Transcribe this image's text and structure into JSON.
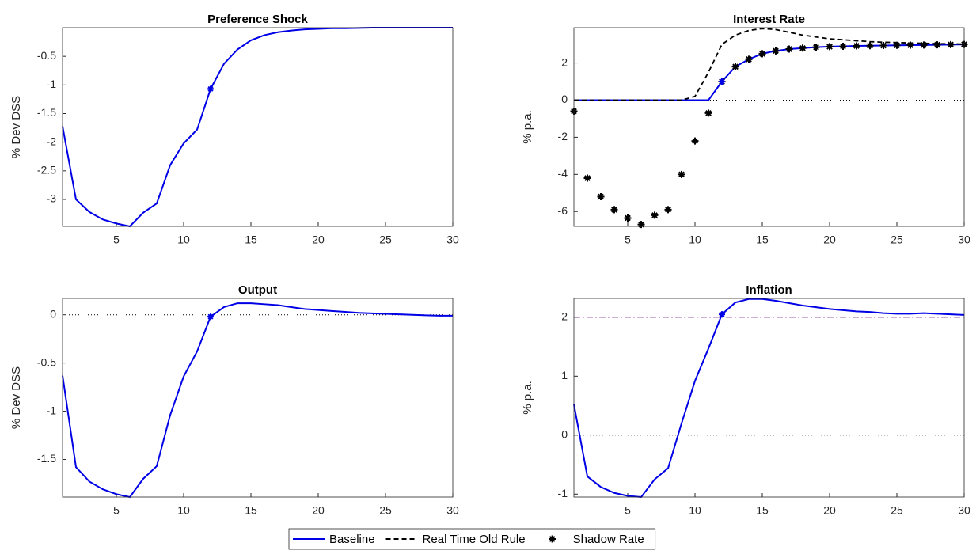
{
  "chart_data": [
    {
      "type": "line",
      "title": "Preference Shock",
      "ylabel": "% Dev DSS",
      "x": [
        1,
        2,
        3,
        4,
        5,
        6,
        7,
        8,
        9,
        10,
        11,
        12,
        13,
        14,
        15,
        16,
        17,
        18,
        19,
        20,
        21,
        22,
        23,
        24,
        25,
        26,
        27,
        28,
        29,
        30
      ],
      "series": [
        {
          "color": "#0000e6",
          "style": "solid",
          "values": [
            -1.72,
            -3.0,
            -3.22,
            -3.35,
            -3.42,
            -3.47,
            -3.23,
            -3.07,
            -2.4,
            -2.02,
            -1.78,
            -1.07,
            -0.63,
            -0.38,
            -0.22,
            -0.13,
            -0.08,
            -0.05,
            -0.03,
            -0.02,
            -0.01,
            -0.01,
            -0.005,
            0,
            0,
            0,
            0,
            0,
            0,
            0
          ]
        }
      ],
      "marker_x": 12,
      "xlim": [
        1,
        30
      ],
      "xticks": [
        5,
        10,
        15,
        20,
        25,
        30
      ],
      "ylim": [
        -3.47,
        0
      ],
      "yticks": [
        -3,
        -2.5,
        -2,
        -1.5,
        -1,
        -0.5
      ],
      "hlines": []
    },
    {
      "type": "line",
      "title": "Interest Rate",
      "ylabel": "% p.a.",
      "x": [
        1,
        2,
        3,
        4,
        5,
        6,
        7,
        8,
        9,
        10,
        11,
        12,
        13,
        14,
        15,
        16,
        17,
        18,
        19,
        20,
        21,
        22,
        23,
        24,
        25,
        26,
        27,
        28,
        29,
        30
      ],
      "series": [
        {
          "name": "Baseline",
          "color": "#0000e6",
          "style": "solid",
          "values": [
            0,
            0,
            0,
            0,
            0,
            0,
            0,
            0,
            0,
            0,
            0,
            1.0,
            1.8,
            2.2,
            2.5,
            2.65,
            2.75,
            2.8,
            2.85,
            2.88,
            2.9,
            2.92,
            2.93,
            2.94,
            2.95,
            2.96,
            2.97,
            2.98,
            2.99,
            3.0
          ]
        },
        {
          "name": "Real Time Old Rule",
          "color": "#000000",
          "style": "dashed",
          "values": [
            0,
            0,
            0,
            0,
            0,
            0,
            0,
            0,
            0,
            0.2,
            1.5,
            3.0,
            3.5,
            3.75,
            3.85,
            3.8,
            3.65,
            3.5,
            3.4,
            3.3,
            3.25,
            3.2,
            3.15,
            3.12,
            3.1,
            3.08,
            3.06,
            3.04,
            3.03,
            3.02
          ]
        },
        {
          "name": "Shadow Rate",
          "color": "#000000",
          "style": "markers",
          "values": [
            -0.6,
            -4.2,
            -5.2,
            -5.9,
            -6.35,
            -6.7,
            -6.2,
            -5.9,
            -4.0,
            -2.2,
            -0.7,
            1.0,
            1.8,
            2.2,
            2.5,
            2.65,
            2.75,
            2.8,
            2.85,
            2.88,
            2.9,
            2.92,
            2.93,
            2.94,
            2.95,
            2.96,
            2.97,
            2.98,
            2.99,
            3.0
          ]
        }
      ],
      "marker_x": 12,
      "xlim": [
        1,
        30
      ],
      "xticks": [
        5,
        10,
        15,
        20,
        25,
        30
      ],
      "ylim": [
        -6.8,
        3.9
      ],
      "yticks": [
        -6,
        -4,
        -2,
        0,
        2
      ],
      "hlines": [
        {
          "value": 0,
          "color": "#000000",
          "style": "dotted"
        }
      ]
    },
    {
      "type": "line",
      "title": "Output",
      "ylabel": "% Dev DSS",
      "x": [
        1,
        2,
        3,
        4,
        5,
        6,
        7,
        8,
        9,
        10,
        11,
        12,
        13,
        14,
        15,
        16,
        17,
        18,
        19,
        20,
        21,
        22,
        23,
        24,
        25,
        26,
        27,
        28,
        29,
        30
      ],
      "series": [
        {
          "color": "#0000e6",
          "style": "solid",
          "values": [
            -0.63,
            -1.58,
            -1.73,
            -1.81,
            -1.86,
            -1.89,
            -1.7,
            -1.57,
            -1.04,
            -0.64,
            -0.38,
            -0.02,
            0.08,
            0.12,
            0.12,
            0.11,
            0.1,
            0.08,
            0.06,
            0.05,
            0.04,
            0.03,
            0.02,
            0.015,
            0.01,
            0.005,
            0,
            -0.005,
            -0.01,
            -0.01
          ]
        }
      ],
      "marker_x": 12,
      "xlim": [
        1,
        30
      ],
      "xticks": [
        5,
        10,
        15,
        20,
        25,
        30
      ],
      "ylim": [
        -1.89,
        0.17
      ],
      "yticks": [
        -1.5,
        -1,
        -0.5,
        0
      ],
      "hlines": [
        {
          "value": 0,
          "color": "#000000",
          "style": "dotted"
        }
      ]
    },
    {
      "type": "line",
      "title": "Inflation",
      "ylabel": "% p.a.",
      "x": [
        1,
        2,
        3,
        4,
        5,
        6,
        7,
        8,
        9,
        10,
        11,
        12,
        13,
        14,
        15,
        16,
        17,
        18,
        19,
        20,
        21,
        22,
        23,
        24,
        25,
        26,
        27,
        28,
        29,
        30
      ],
      "series": [
        {
          "color": "#0000e6",
          "style": "solid",
          "values": [
            0.52,
            -0.7,
            -0.88,
            -0.98,
            -1.03,
            -1.05,
            -0.75,
            -0.56,
            0.2,
            0.92,
            1.47,
            2.05,
            2.25,
            2.31,
            2.31,
            2.28,
            2.24,
            2.2,
            2.17,
            2.14,
            2.12,
            2.1,
            2.09,
            2.07,
            2.06,
            2.06,
            2.07,
            2.06,
            2.05,
            2.04
          ]
        }
      ],
      "marker_x": 12,
      "xlim": [
        1,
        30
      ],
      "xticks": [
        5,
        10,
        15,
        20,
        25,
        30
      ],
      "ylim": [
        -1.05,
        2.32
      ],
      "yticks": [
        -1,
        0,
        1,
        2
      ],
      "hlines": [
        {
          "value": 0,
          "color": "#000000",
          "style": "dotted"
        },
        {
          "value": 2,
          "color": "#7e2f8e",
          "style": "dashdot"
        }
      ]
    }
  ]
}
